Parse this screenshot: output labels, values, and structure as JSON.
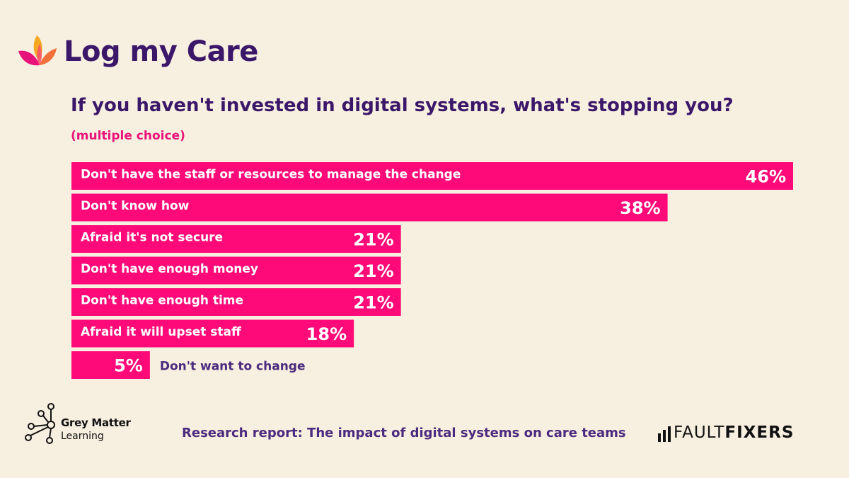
{
  "brand": {
    "name": "Log my Care"
  },
  "chart_data": {
    "type": "bar",
    "orientation": "horizontal",
    "title": "If you haven't invested in digital systems, what's stopping you?",
    "subtitle": "(multiple choice)",
    "categories": [
      "Don't have the staff or resources to manage the change",
      "Don't know how",
      "Afraid it's not secure",
      "Don't have enough money",
      "Don't have enough time",
      "Afraid it will upset staff",
      "Don't want to change"
    ],
    "values": [
      46,
      38,
      21,
      21,
      21,
      18,
      5
    ],
    "value_labels": [
      "46%",
      "38%",
      "21%",
      "21%",
      "21%",
      "18%",
      "5%"
    ],
    "unit": "%",
    "xlim": [
      0,
      46
    ],
    "grid": false,
    "colors": {
      "bar": "#ff0a78",
      "bar_text": "#ffffff",
      "outside_label": "#4b2b7e"
    }
  },
  "footer": {
    "left_logo": {
      "name": "Grey Matter",
      "sub": "Learning"
    },
    "report": "Research report: The impact of digital systems on care teams",
    "right_logo": {
      "part1": "FAULT",
      "part2": "FIXERS"
    }
  },
  "colors": {
    "background": "#f7efdf",
    "heading": "#3b1769",
    "accent": "#e8137a"
  }
}
